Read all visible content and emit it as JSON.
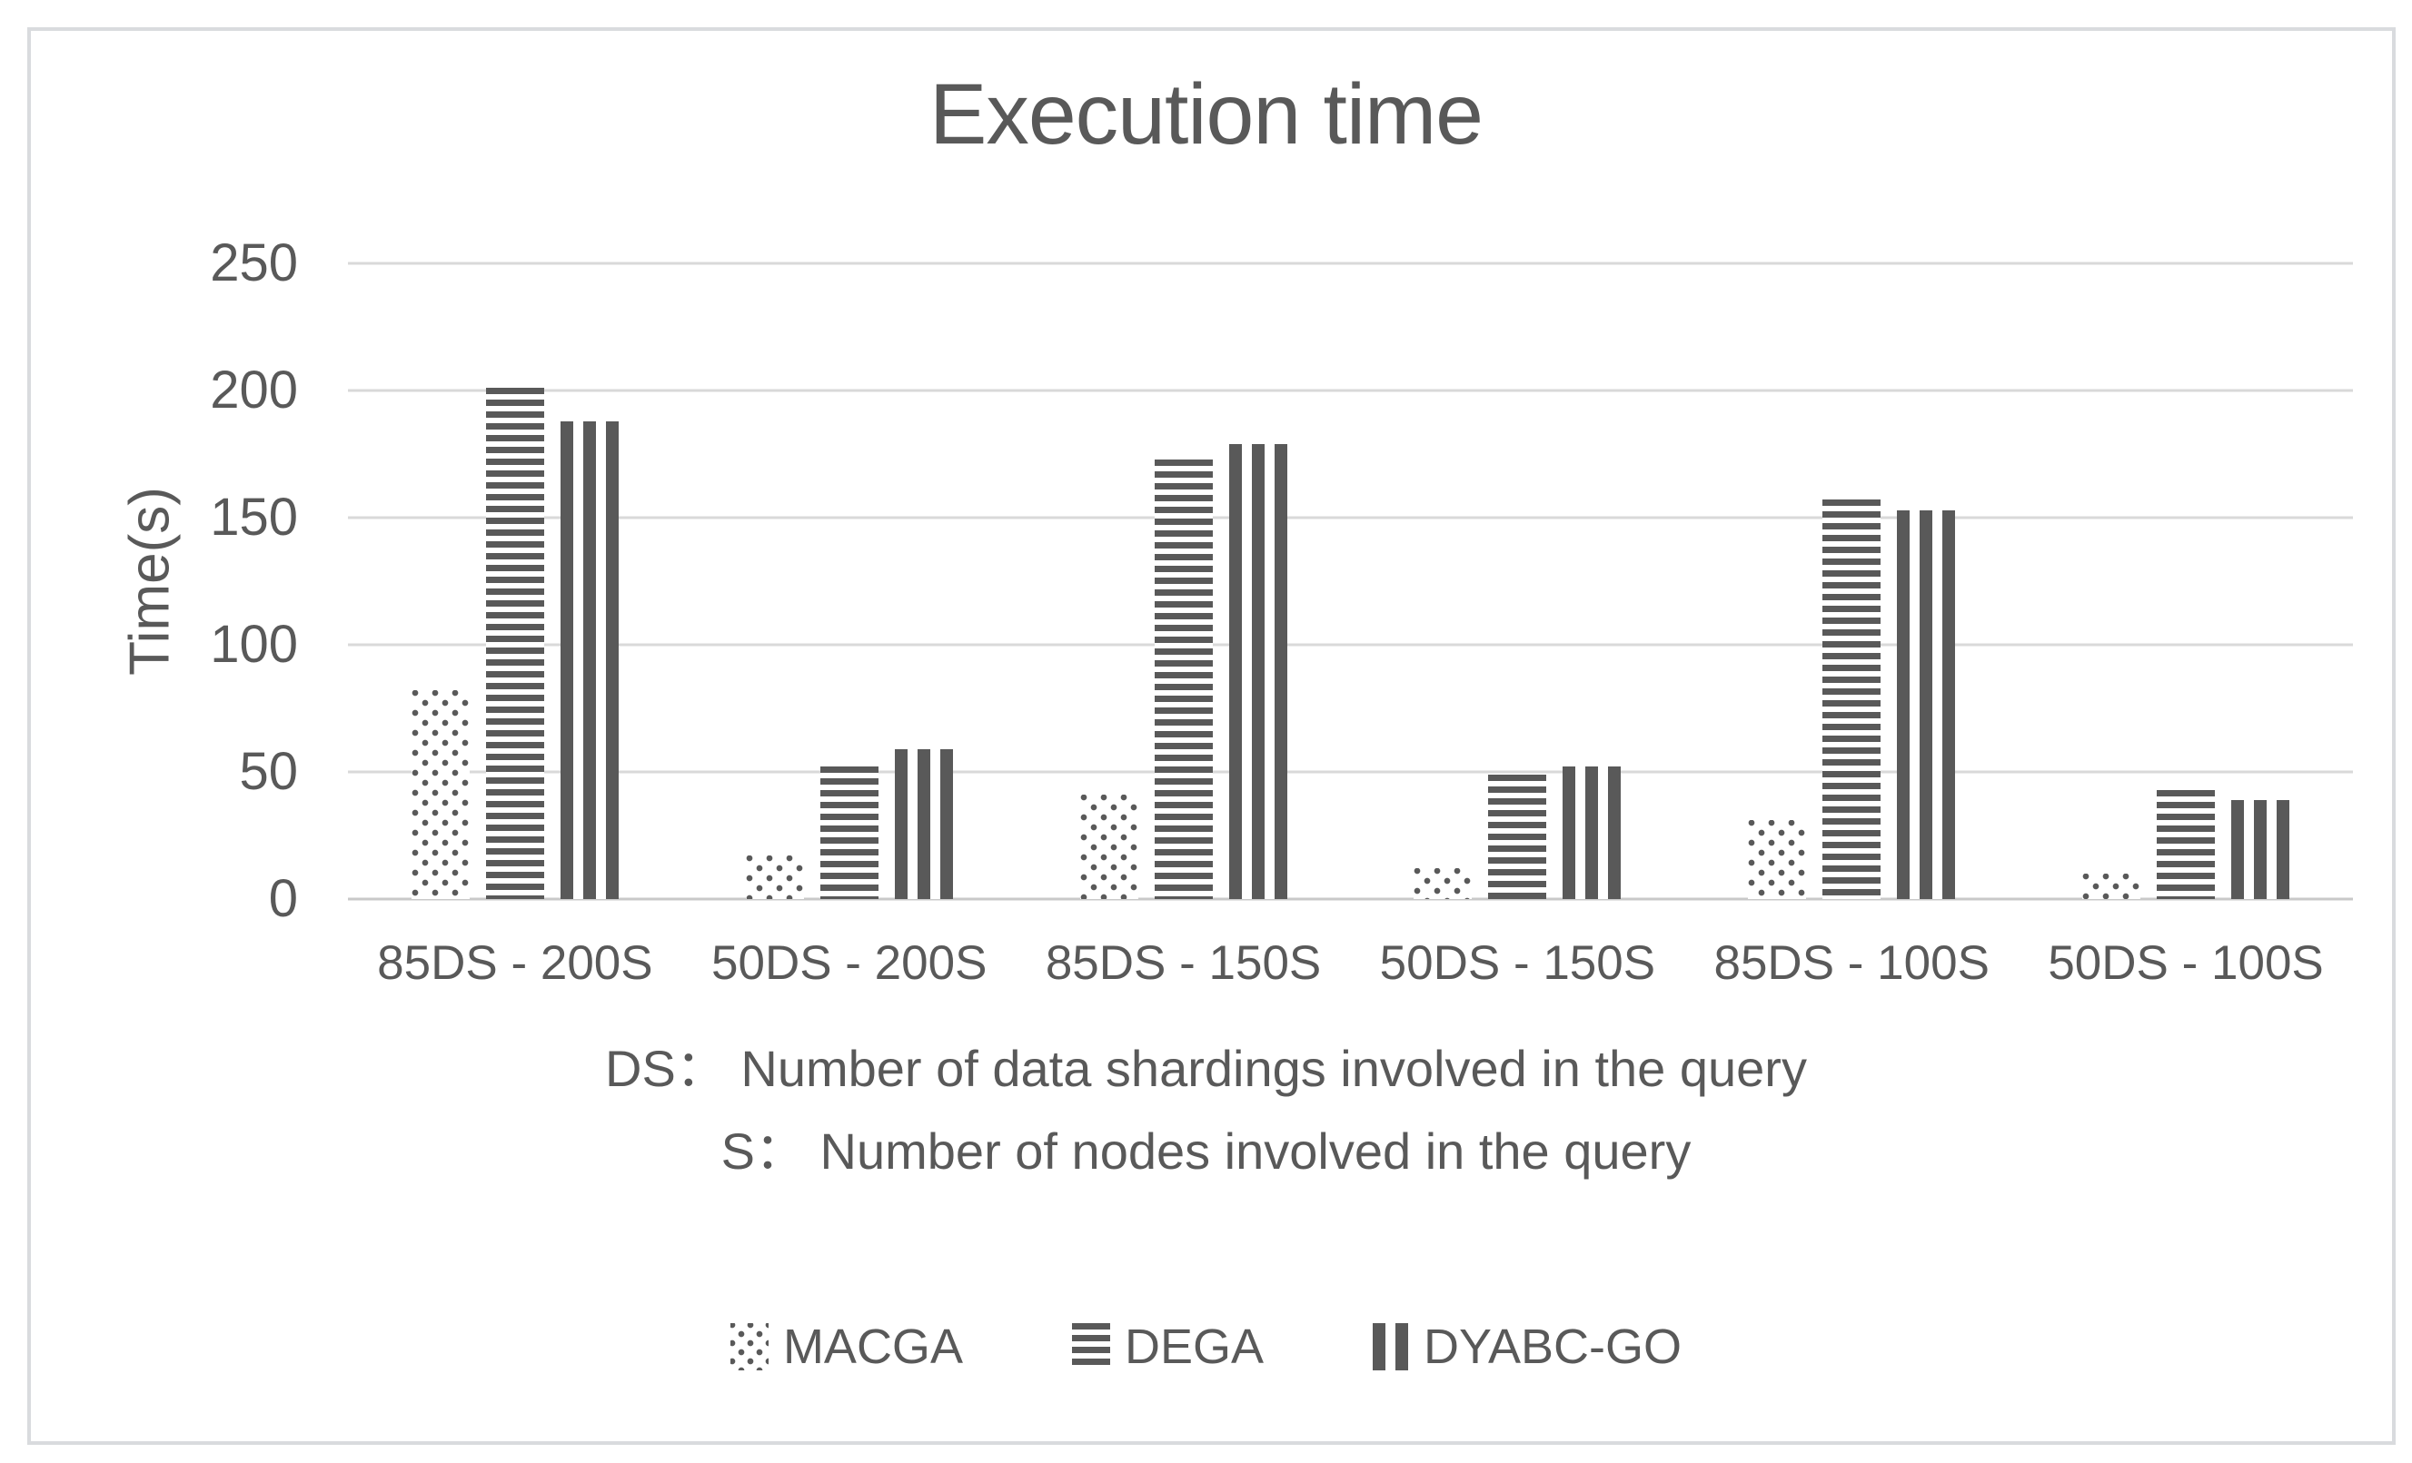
{
  "figure": {
    "title": "Execution time",
    "y_axis_label": "Time(s)",
    "notes": [
      "DS：  Number of data shardings involved in the query",
      "S：  Number of nodes involved in the query"
    ]
  },
  "chart_data": {
    "type": "bar",
    "title": "Execution time",
    "xlabel": "",
    "ylabel": "Time(s)",
    "ylim": [
      0,
      250
    ],
    "yticks": [
      0,
      50,
      100,
      150,
      200,
      250
    ],
    "grid": "horizontal",
    "legend_position": "bottom",
    "categories": [
      "85DS - 200S",
      "50DS - 200S",
      "85DS - 150S",
      "50DS - 150S",
      "85DS - 100S",
      "50DS - 100S"
    ],
    "series": [
      {
        "name": "MACGA",
        "pattern": "dots",
        "values": [
          82,
          17,
          41,
          12,
          31,
          10
        ]
      },
      {
        "name": "DEGA",
        "pattern": "hlines",
        "values": [
          201,
          52,
          173,
          49,
          157,
          43
        ]
      },
      {
        "name": "DYABC-GO",
        "pattern": "vlines",
        "values": [
          188,
          59,
          179,
          52,
          153,
          39
        ]
      }
    ],
    "annotations": [
      "DS：  Number of data shardings involved in the query",
      "S：  Number of nodes involved in the query"
    ],
    "colors": {
      "bar": "#595959",
      "text": "#595959",
      "gridline": "#d9d9d9",
      "background": "#ffffff",
      "frame_border": "#d9dbde"
    }
  }
}
